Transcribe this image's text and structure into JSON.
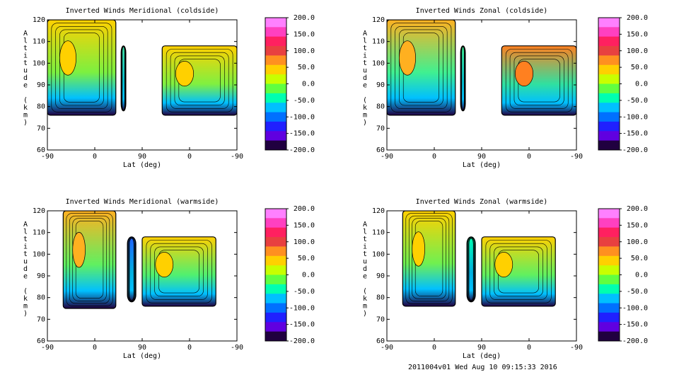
{
  "axis_tick_labels": [
    "-90",
    "0",
    "90",
    "0",
    "-90"
  ],
  "footer_text": "2011004v01 Wed Aug 10 09:15:33 2016",
  "colorbar": {
    "labels": [
      "200.0",
      "150.0",
      "100.0",
      "50.0",
      "0.0",
      "-50.0",
      "-100.0",
      "-150.0",
      "-200.0"
    ],
    "colors": [
      "#ff80ff",
      "#ff40c0",
      "#ff2060",
      "#e84040",
      "#ff9020",
      "#ffd000",
      "#c8ff00",
      "#60ff40",
      "#00ffb0",
      "#00c0ff",
      "#0070ff",
      "#2020ff",
      "#6000e0",
      "#200040"
    ]
  },
  "chart_data": [
    {
      "type": "heatmap",
      "title": "Inverted Winds Meridional (coldside)",
      "xlabel": "Lat (deg)",
      "ylabel": "Altitude (km)",
      "x_ticks": [
        "-90",
        "0",
        "90",
        "0",
        "-90"
      ],
      "y_ticks": [
        120,
        110,
        100,
        90,
        80,
        70,
        60
      ],
      "ylim": [
        60,
        120
      ],
      "colorbar_range": [
        -200,
        200
      ],
      "regions": [
        {
          "name": "main",
          "lat_start": -90,
          "lat_end": 40,
          "alt_min": 76,
          "alt_max": 120,
          "fill": "#7cf040",
          "hot": "#ffd000"
        },
        {
          "name": "small",
          "lat_start": 50,
          "lat_end": 59,
          "alt_min": 78,
          "alt_max": 108,
          "fill": "#00c0d0",
          "hot": "#40e0a0"
        },
        {
          "name": "right",
          "lat_start": 128,
          "lat_end": 270,
          "alt_min": 76,
          "alt_max": 108,
          "fill": "#80f040",
          "hot": "#ffd000"
        }
      ]
    },
    {
      "type": "heatmap",
      "title": "Inverted Winds Zonal (coldside)",
      "xlabel": "Lat (deg)",
      "ylabel": "Altitude (km)",
      "x_ticks": [
        "-90",
        "0",
        "90",
        "0",
        "-90"
      ],
      "y_ticks": [
        120,
        110,
        100,
        90,
        80,
        70,
        60
      ],
      "ylim": [
        60,
        120
      ],
      "colorbar_range": [
        -200,
        200
      ],
      "regions": [
        {
          "name": "main",
          "lat_start": -90,
          "lat_end": 40,
          "alt_min": 76,
          "alt_max": 120,
          "fill": "#40f090",
          "hot": "#ffb020"
        },
        {
          "name": "small",
          "lat_start": 50,
          "lat_end": 59,
          "alt_min": 78,
          "alt_max": 108,
          "fill": "#00c0d0",
          "hot": "#40f090"
        },
        {
          "name": "right",
          "lat_start": 128,
          "lat_end": 270,
          "alt_min": 76,
          "alt_max": 108,
          "fill": "#30e0a0",
          "hot": "#ff8020"
        }
      ]
    },
    {
      "type": "heatmap",
      "title": "Inverted Winds Meridional (warmside)",
      "xlabel": "Lat (deg)",
      "ylabel": "Altitude (km)",
      "x_ticks": [
        "-90",
        "0",
        "90",
        "0",
        "-90"
      ],
      "y_ticks": [
        120,
        110,
        100,
        90,
        80,
        70,
        60
      ],
      "ylim": [
        60,
        120
      ],
      "colorbar_range": [
        -200,
        200
      ],
      "regions": [
        {
          "name": "main",
          "lat_start": -60,
          "lat_end": 40,
          "alt_min": 75,
          "alt_max": 120,
          "fill": "#60f060",
          "hot": "#ffb020"
        },
        {
          "name": "small",
          "lat_start": 62,
          "lat_end": 78,
          "alt_min": 78,
          "alt_max": 108,
          "fill": "#00b0e0",
          "hot": "#2060ff"
        },
        {
          "name": "right",
          "lat_start": 90,
          "lat_end": 230,
          "alt_min": 76,
          "alt_max": 108,
          "fill": "#50f070",
          "hot": "#ffd000"
        }
      ]
    },
    {
      "type": "heatmap",
      "title": "Inverted Winds Zonal (warmside)",
      "xlabel": "Lat (deg)",
      "ylabel": "Altitude (km)",
      "x_ticks": [
        "-90",
        "0",
        "90",
        "0",
        "-90"
      ],
      "y_ticks": [
        120,
        110,
        100,
        90,
        80,
        70,
        60
      ],
      "ylim": [
        60,
        120
      ],
      "colorbar_range": [
        -200,
        200
      ],
      "regions": [
        {
          "name": "main",
          "lat_start": -60,
          "lat_end": 40,
          "alt_min": 76,
          "alt_max": 120,
          "fill": "#70f050",
          "hot": "#ffd000"
        },
        {
          "name": "small",
          "lat_start": 62,
          "lat_end": 78,
          "alt_min": 78,
          "alt_max": 108,
          "fill": "#00b0e0",
          "hot": "#00ffb0"
        },
        {
          "name": "right",
          "lat_start": 90,
          "lat_end": 230,
          "alt_min": 76,
          "alt_max": 108,
          "fill": "#60f060",
          "hot": "#ffd000"
        }
      ]
    }
  ]
}
